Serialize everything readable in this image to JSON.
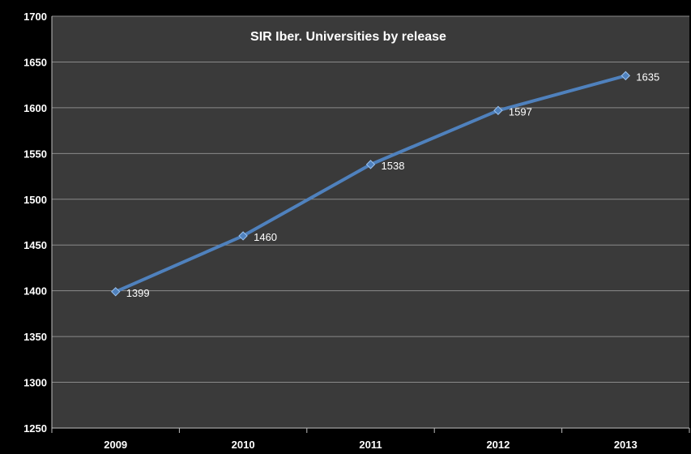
{
  "chart_data": {
    "type": "line",
    "title": "SIR Iber. Universities by release",
    "xlabel": "",
    "ylabel": "",
    "categories": [
      "2009",
      "2010",
      "2011",
      "2012",
      "2013"
    ],
    "series": [
      {
        "values": [
          1399,
          1460,
          1538,
          1597,
          1635
        ]
      }
    ],
    "ylim": [
      1250,
      1700
    ],
    "yticks": [
      "1250",
      "1300",
      "1350",
      "1400",
      "1450",
      "1500",
      "1550",
      "1600",
      "1650",
      "1700"
    ],
    "data_labels": [
      "1399",
      "1460",
      "1538",
      "1597",
      "1635"
    ],
    "grid": true,
    "legend": "none",
    "colors": {
      "page_background": "#000000",
      "plot_background": "#3a3a3a",
      "gridline": "#8a8a8a",
      "axis": "#bfbfbf",
      "series_line": "#4f81bd",
      "marker": "#4f81bd",
      "text": "#ffffff"
    }
  }
}
